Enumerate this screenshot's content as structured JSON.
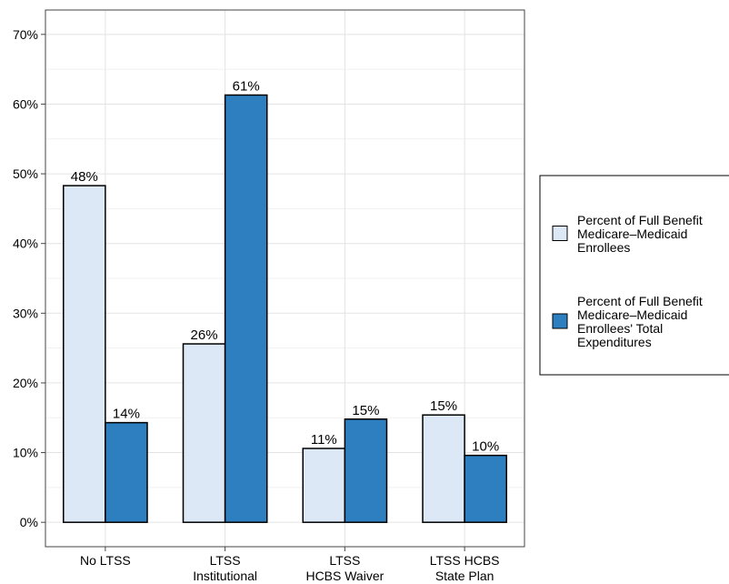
{
  "chart_data": {
    "type": "bar",
    "title": "",
    "xlabel": "",
    "ylabel": "",
    "categories": [
      [
        "No LTSS"
      ],
      [
        "LTSS",
        "Institutional"
      ],
      [
        "LTSS",
        "HCBS Waiver"
      ],
      [
        "LTSS HCBS",
        "State Plan"
      ]
    ],
    "series": [
      {
        "name": "Percent of Full Benefit Medicare–Medicaid Enrollees",
        "legend_lines": [
          "Percent of Full Benefit",
          "Medicare–Medicaid",
          "Enrollees"
        ],
        "color": "#dce8f5",
        "values": [
          48.3,
          25.6,
          10.6,
          15.4
        ],
        "labels": [
          "48%",
          "26%",
          "11%",
          "15%"
        ]
      },
      {
        "name": "Percent of Full Benefit Medicare–Medicaid Enrollees' Total Expenditures",
        "legend_lines": [
          "Percent of Full Benefit",
          "Medicare–Medicaid",
          "Enrollees' Total",
          "Expenditures"
        ],
        "color": "#2e7fbf",
        "values": [
          14.3,
          61.3,
          14.8,
          9.6
        ],
        "labels": [
          "14%",
          "61%",
          "15%",
          "10%"
        ]
      }
    ],
    "ylim": [
      -3.5,
      73.5
    ],
    "yticks": [
      0,
      10,
      20,
      30,
      40,
      50,
      60,
      70
    ],
    "ytick_labels": [
      "0%",
      "10%",
      "20%",
      "30%",
      "40%",
      "50%",
      "60%",
      "70%"
    ],
    "grid": true,
    "legend_position": "right"
  }
}
